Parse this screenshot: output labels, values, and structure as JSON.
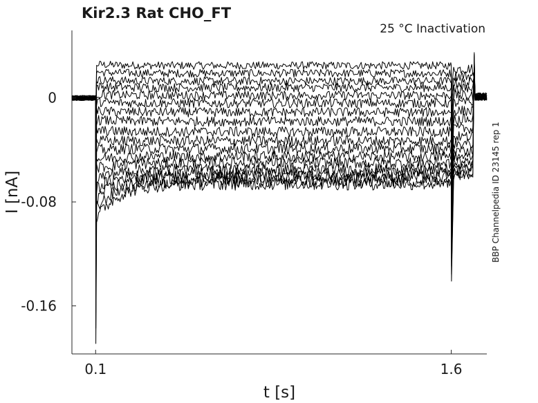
{
  "chart_data": {
    "type": "line",
    "title": "Kir2.3  Rat  CHO_FT",
    "subtitle": "25 °C  Inactivation",
    "side_label": "BBP Channelpedia ID 23145 rep 1",
    "xlabel": "t [s]",
    "ylabel": "I [nA]",
    "x_ticks": [
      0.1,
      1.6
    ],
    "x_tick_labels": [
      "0.1",
      "1.6"
    ],
    "y_ticks": [
      0,
      -0.08,
      -0.16
    ],
    "y_tick_labels": [
      "0",
      "-0.08",
      "-0.16"
    ],
    "xlim": [
      0.0,
      1.75
    ],
    "ylim": [
      -0.197,
      0.052
    ],
    "grid": false,
    "legend": "none",
    "color": "#000000",
    "step_on": 0.1,
    "step_off": 1.6,
    "series": [
      {
        "holding": 0.0,
        "step_level": 0.026,
        "late_level": 0.025,
        "after_level": 0.001
      },
      {
        "holding": 0.0,
        "step_level": 0.02,
        "late_level": 0.019,
        "after_level": 0.001
      },
      {
        "holding": 0.0,
        "step_level": 0.014,
        "late_level": 0.013,
        "after_level": 0.001
      },
      {
        "holding": 0.0,
        "step_level": 0.009,
        "late_level": 0.008,
        "after_level": 0.001
      },
      {
        "holding": 0.0,
        "step_level": 0.003,
        "late_level": 0.002,
        "after_level": 0.001
      },
      {
        "holding": 0.0,
        "step_level": -0.003,
        "late_level": -0.004,
        "after_level": 0.001
      },
      {
        "holding": 0.0,
        "step_level": -0.01,
        "late_level": -0.011,
        "after_level": 0.001
      },
      {
        "holding": 0.0,
        "step_level": -0.017,
        "late_level": -0.018,
        "after_level": 0.001
      },
      {
        "holding": 0.0,
        "step_level": -0.025,
        "late_level": -0.026,
        "after_level": 0.001
      },
      {
        "holding": 0.0,
        "step_level": -0.033,
        "late_level": -0.033,
        "after_level": 0.001
      },
      {
        "holding": 0.0,
        "step_level": -0.04,
        "late_level": -0.039,
        "after_level": 0.001
      },
      {
        "holding": 0.0,
        "step_level": -0.047,
        "late_level": -0.045,
        "after_level": 0.001
      },
      {
        "holding": 0.0,
        "step_level": -0.054,
        "late_level": -0.05,
        "after_level": 0.001
      },
      {
        "holding": 0.0,
        "step_level": -0.062,
        "late_level": -0.055,
        "after_level": 0.001
      },
      {
        "holding": 0.0,
        "step_level": -0.07,
        "late_level": -0.058,
        "after_level": 0.001
      },
      {
        "holding": 0.0,
        "step_level": -0.078,
        "late_level": -0.061,
        "after_level": 0.001
      },
      {
        "holding": 0.0,
        "step_level": -0.086,
        "late_level": -0.064,
        "after_level": 0.001
      },
      {
        "holding": 0.0,
        "step_level": -0.094,
        "late_level": -0.066,
        "after_level": 0.001
      }
    ]
  }
}
